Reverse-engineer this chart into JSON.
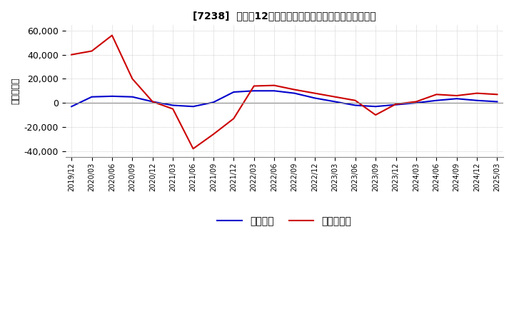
{
  "title": "[7238]  利益の12か月移動合計の対前年同期増減額の推移",
  "ylabel": "（百万円）",
  "ylim": [
    -45000,
    65000
  ],
  "yticks": [
    -40000,
    -20000,
    0,
    20000,
    40000,
    60000
  ],
  "legend_labels": [
    "経常利益",
    "当期純利益"
  ],
  "line_colors": [
    "#0000cc",
    "#cc0000"
  ],
  "x_labels": [
    "2019/12",
    "2020/03",
    "2020/06",
    "2020/09",
    "2020/12",
    "2021/03",
    "2021/06",
    "2021/09",
    "2021/12",
    "2022/03",
    "2022/06",
    "2022/09",
    "2022/12",
    "2023/03",
    "2023/06",
    "2023/09",
    "2023/12",
    "2024/03",
    "2024/06",
    "2024/09",
    "2024/12",
    "2025/03"
  ],
  "series_operating": [
    -3000,
    5000,
    5500,
    5000,
    1000,
    -2000,
    -3000,
    500,
    9000,
    10000,
    10000,
    8000,
    4000,
    1000,
    -2000,
    -3000,
    -1500,
    0,
    2000,
    3500,
    2000,
    1000
  ],
  "series_net": [
    40000,
    43000,
    56000,
    20000,
    1000,
    -5000,
    -38000,
    -26000,
    -13000,
    14000,
    14500,
    11000,
    8000,
    5000,
    2000,
    -10000,
    -1000,
    1000,
    7000,
    6000,
    8000,
    7000
  ],
  "background_color": "#ffffff",
  "grid_color": "#aaaaaa"
}
